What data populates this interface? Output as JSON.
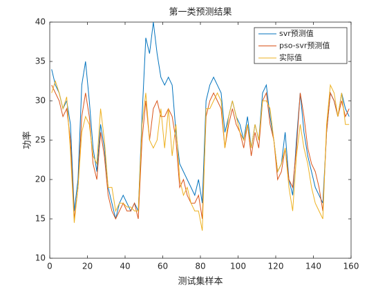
{
  "chart_data": {
    "type": "line",
    "title": "第一类预测结果",
    "x_label": "测试集样本",
    "y_label": "功率",
    "x": [
      1,
      3,
      5,
      7,
      9,
      11,
      13,
      15,
      17,
      19,
      21,
      23,
      25,
      27,
      29,
      31,
      33,
      35,
      37,
      39,
      41,
      43,
      45,
      47,
      49,
      51,
      53,
      55,
      57,
      59,
      61,
      63,
      65,
      67,
      69,
      71,
      73,
      75,
      77,
      79,
      81,
      83,
      85,
      87,
      89,
      91,
      93,
      95,
      97,
      99,
      101,
      103,
      105,
      107,
      109,
      111,
      113,
      115,
      117,
      119,
      121,
      123,
      125,
      127,
      129,
      131,
      133,
      135,
      137,
      139,
      141,
      143,
      145,
      147,
      149,
      151,
      153,
      155,
      157,
      159
    ],
    "series": [
      {
        "name": "svr预测值",
        "color": "#0072bd",
        "values": [
          34,
          32,
          31,
          29,
          30,
          27,
          16,
          20,
          32,
          35,
          30,
          24,
          21,
          27,
          24,
          19,
          17,
          15,
          17,
          18,
          17,
          16,
          17,
          16,
          28,
          38,
          36,
          40,
          36,
          33,
          32,
          33,
          32,
          26,
          22,
          21,
          20,
          19,
          18,
          20,
          17,
          30,
          32,
          33,
          32,
          31,
          26,
          28,
          30,
          28,
          27,
          25,
          28,
          24,
          27,
          25,
          31,
          32,
          28,
          25,
          21,
          22,
          26,
          20,
          18,
          25,
          31,
          26,
          23,
          21,
          19,
          18,
          17,
          26,
          31,
          30,
          28,
          31,
          29,
          28
        ]
      },
      {
        "name": "pso-svr预测值",
        "color": "#d95319",
        "values": [
          32,
          31,
          30,
          28,
          29,
          25,
          15,
          19,
          28,
          31,
          28,
          22,
          20,
          26,
          23,
          18,
          16,
          15,
          16,
          17,
          16,
          16,
          17,
          15,
          25,
          30,
          25,
          29,
          30,
          28,
          28,
          29,
          28,
          25,
          19,
          20,
          18,
          17,
          17,
          18,
          15,
          28,
          30,
          31,
          30,
          29,
          24,
          27,
          29,
          27,
          26,
          24,
          27,
          23,
          26,
          24,
          30,
          31,
          27,
          25,
          20,
          21,
          24,
          20,
          19,
          24,
          31,
          28,
          24,
          22,
          21,
          19,
          16,
          26,
          31,
          30,
          28,
          30,
          28,
          29
        ]
      },
      {
        "name": "实际值",
        "color": "#edb120",
        "values": [
          31,
          32.5,
          31,
          29,
          30.5,
          23.5,
          14.5,
          19,
          26,
          28,
          27,
          23,
          22,
          29,
          25,
          19,
          19,
          16,
          17,
          17,
          16.5,
          16.5,
          16,
          16,
          27,
          31,
          25,
          24,
          25,
          29,
          24,
          29,
          23,
          27,
          20,
          18,
          19,
          17,
          16,
          16,
          13.5,
          29,
          29,
          30,
          31,
          30,
          24,
          28,
          30,
          28,
          26,
          25,
          27,
          24,
          27,
          25,
          30,
          30,
          29,
          25,
          21,
          22,
          24,
          19,
          16,
          23,
          27,
          24,
          22,
          19,
          17,
          16,
          15,
          27,
          32,
          31,
          28,
          31,
          27,
          27
        ]
      }
    ],
    "xlim": [
      0,
      160
    ],
    "ylim": [
      10,
      40
    ],
    "xticks": [
      0,
      20,
      40,
      60,
      80,
      100,
      120,
      140,
      160
    ],
    "yticks": [
      10,
      15,
      20,
      25,
      30,
      35,
      40
    ],
    "legend": "upper right",
    "grid": false
  }
}
